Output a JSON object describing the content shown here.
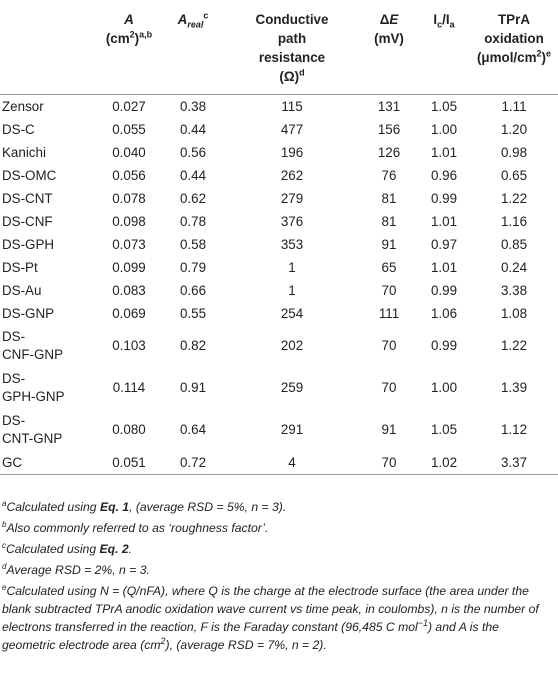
{
  "header": {
    "area_symbol": "A",
    "area_unit": "(cm",
    "area_unit_sup": "2",
    "area_unit_close": ")",
    "area_marks": "a,b",
    "areal_symbol": "A",
    "areal_sub": "real",
    "areal_mark": "c",
    "resistance_line1": "Conductive",
    "resistance_line2": "path",
    "resistance_line3": "resistance",
    "resistance_unit": "(Ω)",
    "resistance_mark": "d",
    "delta_symbol": "Δ",
    "delta_e": "E",
    "delta_unit": "(mV)",
    "ratio_i1": "I",
    "ratio_c": "c",
    "ratio_slash": "/I",
    "ratio_a": "a",
    "tpra_line1": "TPrA",
    "tpra_line2": "oxidation",
    "tpra_unit": "(μmol/cm",
    "tpra_sup": "2",
    "tpra_close": ")",
    "tpra_mark": "e"
  },
  "rows": [
    {
      "name": "Zensor",
      "a": "0.027",
      "areal": "0.38",
      "res": "115",
      "de": "131",
      "ratio": "1.05",
      "tpra": "1.11"
    },
    {
      "name": "DS-C",
      "a": "0.055",
      "areal": "0.44",
      "res": "477",
      "de": "156",
      "ratio": "1.00",
      "tpra": "1.20"
    },
    {
      "name": "Kanichi",
      "a": "0.040",
      "areal": "0.56",
      "res": "196",
      "de": "126",
      "ratio": "1.01",
      "tpra": "0.98"
    },
    {
      "name": "DS-OMC",
      "a": "0.056",
      "areal": "0.44",
      "res": "262",
      "de": "76",
      "ratio": "0.96",
      "tpra": "0.65"
    },
    {
      "name": "DS-CNT",
      "a": "0.078",
      "areal": "0.62",
      "res": "279",
      "de": "81",
      "ratio": "0.99",
      "tpra": "1.22"
    },
    {
      "name": "DS-CNF",
      "a": "0.098",
      "areal": "0.78",
      "res": "376",
      "de": "81",
      "ratio": "1.01",
      "tpra": "1.16"
    },
    {
      "name": "DS-GPH",
      "a": "0.073",
      "areal": "0.58",
      "res": "353",
      "de": "91",
      "ratio": "0.97",
      "tpra": "0.85"
    },
    {
      "name": "DS-Pt",
      "a": "0.099",
      "areal": "0.79",
      "res": "1",
      "de": "65",
      "ratio": "1.01",
      "tpra": "0.24"
    },
    {
      "name": "DS-Au",
      "a": "0.083",
      "areal": "0.66",
      "res": "1",
      "de": "70",
      "ratio": "0.99",
      "tpra": "3.38"
    },
    {
      "name": "DS-GNP",
      "a": "0.069",
      "areal": "0.55",
      "res": "254",
      "de": "111",
      "ratio": "1.06",
      "tpra": "1.08"
    }
  ],
  "tall_rows": [
    {
      "name1": "DS-",
      "name2": "CNF-GNP",
      "a": "0.103",
      "areal": "0.82",
      "res": "202",
      "de": "70",
      "ratio": "0.99",
      "tpra": "1.22"
    },
    {
      "name1": "DS-",
      "name2": "GPH-GNP",
      "a": "0.114",
      "areal": "0.91",
      "res": "259",
      "de": "70",
      "ratio": "1.00",
      "tpra": "1.39"
    },
    {
      "name1": "DS-",
      "name2": "CNT-GNP",
      "a": "0.080",
      "areal": "0.64",
      "res": "291",
      "de": "91",
      "ratio": "1.05",
      "tpra": "1.12"
    }
  ],
  "last_row": {
    "name": "GC",
    "a": "0.051",
    "areal": "0.72",
    "res": "4",
    "de": "70",
    "ratio": "1.02",
    "tpra": "3.37"
  },
  "footnotes": {
    "a_mark": "a",
    "a_pre": "Calculated using ",
    "a_eq": "Eq. 1",
    "a_post": ", (average RSD = 5%, n = 3).",
    "b_mark": "b",
    "b_text": "Also commonly referred to as ‘roughness factor’.",
    "c_mark": "c",
    "c_pre": "Calculated using ",
    "c_eq": "Eq. 2",
    "c_post": ".",
    "d_mark": "d",
    "d_text": "Average RSD = 2%, n = 3.",
    "e_mark": "e",
    "e_text1": "Calculated using N = (Q/nFA), where Q is the charge at the electrode surface (the area under the blank subtracted TPrA anodic oxidation wave current vs time peak, in coulombs), n is the number of electrons transferred in the reaction, F is the Faraday constant (96,485 C mol",
    "e_text1_sup": "−1",
    "e_text2": ") and A is the geometric electrode area (cm",
    "e_text2_sup": "2",
    "e_text3": "), (average RSD = 7%, n = 2)."
  }
}
